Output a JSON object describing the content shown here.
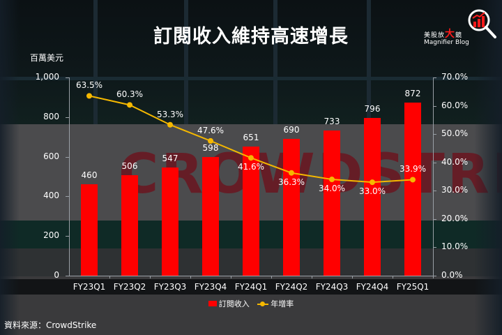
{
  "header": {
    "title": "訂閱收入維持高速增長",
    "unit_label": "百萬美元"
  },
  "logo": {
    "cn_prefix": "美股放",
    "cn_big": "大",
    "cn_suffix": "鏡",
    "en": "Magnifier Blog",
    "icon": "magnifier-chart-icon"
  },
  "colors": {
    "bar": "#ff0000",
    "line": "#f5b800",
    "text": "#ffffff",
    "axis": "#9aa0a6"
  },
  "axes": {
    "left_ticks": [
      "0",
      "200",
      "400",
      "600",
      "800",
      "1,000"
    ],
    "right_ticks": [
      "0.0%",
      "10.0%",
      "20.0%",
      "30.0%",
      "40.0%",
      "50.0%",
      "60.0%",
      "70.0%"
    ]
  },
  "bars": {
    "labels": [
      "460",
      "506",
      "547",
      "598",
      "651",
      "690",
      "733",
      "796",
      "872"
    ]
  },
  "points": {
    "labels": [
      "63.5%",
      "60.3%",
      "53.3%",
      "47.6%",
      "41.6%",
      "36.3%",
      "34.0%",
      "33.0%",
      "33.9%"
    ]
  },
  "categories": [
    "FY23Q1",
    "FY23Q2",
    "FY23Q3",
    "FY23Q4",
    "FY24Q1",
    "FY24Q2",
    "FY24Q3",
    "FY24Q4",
    "FY25Q1"
  ],
  "legend": {
    "bar_label": "訂閱收入",
    "line_label": "年增率"
  },
  "source": "資料來源：CrowdStrike",
  "chart_data": {
    "type": "bar",
    "title": "訂閱收入維持高速增長",
    "categories": [
      "FY23Q1",
      "FY23Q2",
      "FY23Q3",
      "FY23Q4",
      "FY24Q1",
      "FY24Q2",
      "FY24Q3",
      "FY24Q4",
      "FY25Q1"
    ],
    "series": [
      {
        "name": "訂閱收入",
        "type": "bar",
        "axis": "left",
        "values": [
          460,
          506,
          547,
          598,
          651,
          690,
          733,
          796,
          872
        ]
      },
      {
        "name": "年增率",
        "type": "line",
        "axis": "right",
        "values": [
          63.5,
          60.3,
          53.3,
          47.6,
          41.6,
          36.3,
          34.0,
          33.0,
          33.9
        ],
        "unit": "%"
      }
    ],
    "xlabel": "",
    "ylabel": "百萬美元",
    "ylim": [
      0,
      1000
    ],
    "y_ticks": [
      0,
      200,
      400,
      600,
      800,
      1000
    ],
    "y2label": "",
    "y2lim": [
      0,
      70
    ],
    "y2_ticks": [
      0,
      10,
      20,
      30,
      40,
      50,
      60,
      70
    ],
    "grid": false,
    "legend_position": "bottom",
    "source": "資料來源：CrowdStrike"
  }
}
